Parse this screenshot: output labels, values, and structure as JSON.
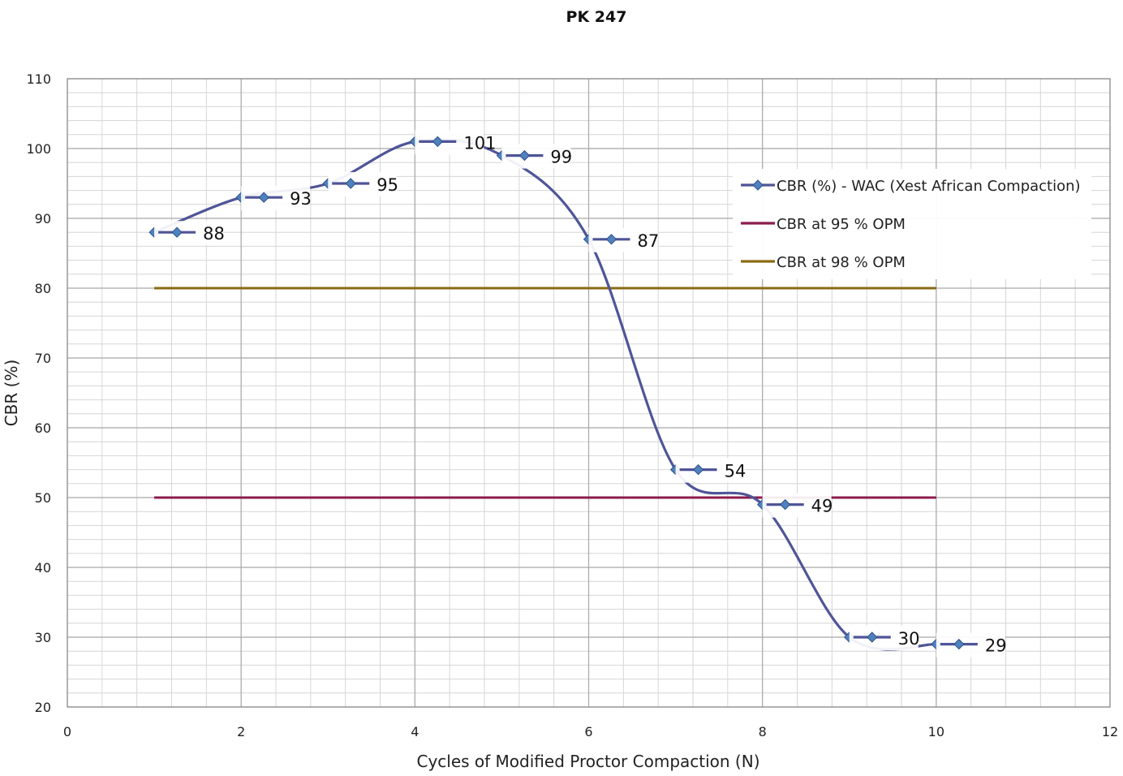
{
  "chart_data": {
    "type": "line",
    "title": "PK 247",
    "xlabel": "Cycles of Modified Proctor Compaction (N)",
    "ylabel": "CBR (%)",
    "xlim": [
      0,
      12
    ],
    "ylim": [
      20,
      110
    ],
    "x_ticks": [
      0,
      2,
      4,
      6,
      8,
      10,
      12
    ],
    "y_ticks": [
      20,
      30,
      40,
      50,
      60,
      70,
      80,
      90,
      100,
      110
    ],
    "grid": true,
    "legend_position": "upper-right",
    "series": [
      {
        "name": "CBR (%) - WAC (Xest African Compaction)",
        "color": "#4f5597",
        "marker": "diamond",
        "marker_color": "#4f81bd",
        "smooth": true,
        "x": [
          1,
          2,
          3,
          4,
          5,
          6,
          7,
          8,
          9,
          10
        ],
        "y": [
          88,
          93,
          95,
          101,
          99,
          87,
          54,
          49,
          30,
          29
        ],
        "data_labels": [
          "88",
          "93",
          "95",
          "101",
          "99",
          "87",
          "54",
          "49",
          "30",
          "29"
        ]
      },
      {
        "name": "CBR at 95 % OPM",
        "color": "#8b1c4e",
        "x": [
          1,
          10
        ],
        "y": [
          50,
          50
        ]
      },
      {
        "name": "CBR at 98 % OPM",
        "color": "#8a6a14",
        "x": [
          1,
          10
        ],
        "y": [
          80,
          80
        ]
      }
    ]
  }
}
